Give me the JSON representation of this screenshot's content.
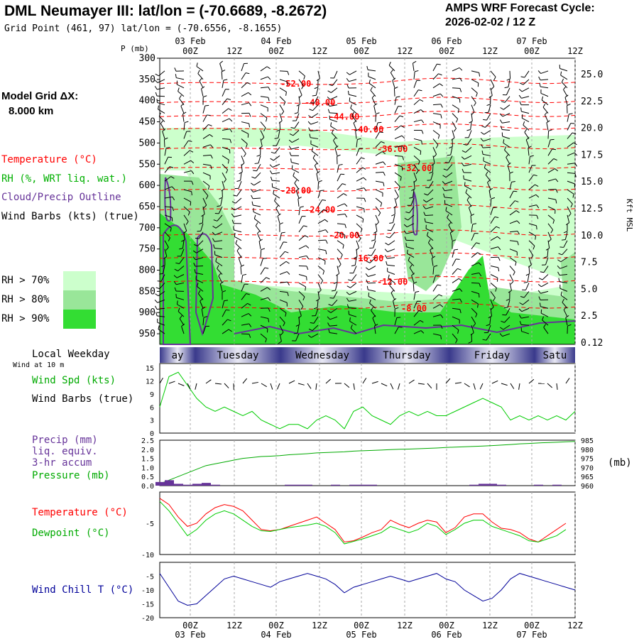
{
  "header": {
    "title": "DML Neumayer III:  lat/lon = (-70.6689, -8.2672)",
    "grid_point": "Grid Point (461, 97) lat/lon = (-70.6556, -8.1655)",
    "cycle_label": "AMPS WRF Forecast Cycle:",
    "cycle_value": "2026-02-02 / 12  Z"
  },
  "model_grid": {
    "label": "Model Grid ΔX:",
    "value": "8.000 km"
  },
  "legend": {
    "temperature": "Temperature (°C)",
    "rh": "RH (%, WRT liq. wat.)",
    "cloud": "Cloud/Precip Outline",
    "wind": "Wind Barbs (kts) (true)",
    "rh70": "RH > 70%",
    "rh80": "RH > 80%",
    "rh90": "RH > 90%"
  },
  "panel_labels": {
    "local_weekday": "Local Weekday",
    "wind_10m": "Wind at 10 m",
    "wind_spd": "Wind Spd (kts)",
    "wind_barbs": "Wind Barbs (true)",
    "precip": "Precip (mm)",
    "liq_equiv": "liq. equiv.",
    "accum": "3-hr accum",
    "pressure": "Pressure (mb)",
    "mb_unit": "(mb)",
    "temperature": "Temperature (°C)",
    "dewpoint": "Dewpoint (°C)",
    "wind_chill": "Wind Chill T (°C)",
    "p_axis": "P (mb)",
    "kft": "Kft MSL"
  },
  "colors": {
    "temperature": "#ff0000",
    "rh70": "#ccffcc",
    "rh80": "#99e699",
    "rh90": "#33dd33",
    "cloud": "#663399",
    "wind_speed": "#00cc00",
    "pressure": "#00aa00",
    "precip": "#663399",
    "dewpoint": "#00cc00",
    "wind_chill": "#000099",
    "weekday_bar": "#3a3a8c"
  },
  "chart_data": [
    {
      "type": "line",
      "panel": "time-height cross section",
      "time_ticks": [
        "00Z",
        "12Z",
        "00Z",
        "12Z",
        "00Z",
        "12Z",
        "00Z",
        "12Z",
        "00Z",
        "12Z"
      ],
      "date_labels": [
        "03 Feb",
        "04 Feb",
        "05 Feb",
        "06 Feb",
        "07 Feb"
      ],
      "pressure_ticks": [
        300,
        350,
        400,
        450,
        500,
        550,
        600,
        650,
        700,
        750,
        800,
        850,
        900,
        950
      ],
      "height_ticks": [
        "25.0",
        "22.5",
        "20.0",
        "17.5",
        "15.0",
        "12.5",
        "10.0",
        "7.5",
        "5.0",
        "2.5",
        "0.12"
      ],
      "temperature_contours": [
        {
          "label": "-52.00",
          "p": 360
        },
        {
          "label": "-48.00",
          "p": 405
        },
        {
          "label": "-44.00",
          "p": 438
        },
        {
          "label": "-40.00",
          "p": 468
        },
        {
          "label": "-36.00",
          "p": 514
        },
        {
          "label": "-32.00",
          "p": 560
        },
        {
          "label": "-28.00",
          "p": 612
        },
        {
          "label": "-24.00",
          "p": 658
        },
        {
          "label": "-20.00",
          "p": 718
        },
        {
          "label": "-16.00",
          "p": 772
        },
        {
          "label": "-12.00",
          "p": 828
        },
        {
          "label": "-8.00",
          "p": 890
        }
      ]
    },
    {
      "type": "line",
      "panel": "wind speed",
      "yticks": [
        0,
        3,
        6,
        9,
        12,
        15
      ],
      "series": [
        {
          "name": "Wind Spd (kts)",
          "values": [
            6,
            13,
            14,
            11,
            8,
            6,
            5,
            6,
            5,
            4,
            5,
            3,
            2,
            1,
            2,
            2,
            1,
            3,
            4,
            3,
            1,
            5,
            6,
            4,
            3,
            2,
            4,
            5,
            4,
            5,
            4,
            4,
            5,
            6,
            7,
            8,
            7,
            6,
            3,
            4,
            3,
            4,
            3,
            4,
            3,
            5
          ]
        }
      ]
    },
    {
      "type": "line",
      "panel": "precip and pressure",
      "precip_yticks": [
        "2.5",
        "2.0",
        "1.5",
        "1.0",
        "0.5",
        "0.0"
      ],
      "pressure_yticks": [
        985,
        980,
        975,
        970,
        965,
        960
      ],
      "series": [
        {
          "name": "Pressure (mb)",
          "values": [
            961,
            963,
            965,
            967,
            969,
            971,
            972,
            973,
            974,
            975,
            975.5,
            976,
            976.2,
            976.5,
            977,
            977.3,
            977.6,
            978,
            978.2,
            978.4,
            978.6,
            979,
            979.2,
            979.4,
            979.6,
            979.8,
            980,
            980.1,
            980.3,
            980.5,
            980.7,
            981,
            981.2,
            981.4,
            981.6,
            981.8,
            982,
            982.3,
            982.6,
            983,
            983.2,
            983.5,
            983.7,
            983.9,
            984.1,
            984.3
          ]
        },
        {
          "name": "Precip (mm)",
          "values": [
            0.2,
            0.3,
            0.1,
            0.05,
            0.1,
            0.15,
            0.05,
            0,
            0,
            0,
            0,
            0,
            0,
            0,
            0.05,
            0.05,
            0.05,
            0,
            0,
            0.05,
            0,
            0.05,
            0.05,
            0.05,
            0,
            0,
            0,
            0,
            0,
            0,
            0,
            0,
            0,
            0,
            0.05,
            0.1,
            0.1,
            0.05,
            0,
            0,
            0,
            0.05,
            0,
            0.05,
            0,
            0
          ]
        }
      ]
    },
    {
      "type": "line",
      "panel": "temperature and dewpoint",
      "yticks": [
        -5,
        -10
      ],
      "series": [
        {
          "name": "Temperature (°C)",
          "values": [
            -1,
            -2,
            -4,
            -5.5,
            -5,
            -3.5,
            -2.5,
            -2,
            -2.3,
            -3,
            -4.5,
            -6,
            -6.2,
            -6,
            -5.5,
            -5,
            -4.5,
            -4,
            -5,
            -6,
            -8,
            -7.8,
            -7.2,
            -6.5,
            -6,
            -4.5,
            -5.2,
            -5.7,
            -5,
            -4.5,
            -4.8,
            -6.5,
            -5.7,
            -4,
            -3.5,
            -3.5,
            -4.8,
            -5.8,
            -6,
            -6.5,
            -7.5,
            -8,
            -7,
            -6,
            -5
          ]
        },
        {
          "name": "Dewpoint (°C)",
          "values": [
            -1.5,
            -3,
            -5,
            -7,
            -6,
            -4.5,
            -3.5,
            -3,
            -3.5,
            -4.5,
            -5.5,
            -6.2,
            -6.3,
            -6,
            -5.7,
            -5.5,
            -5.3,
            -5,
            -5.5,
            -6.5,
            -8.3,
            -7.9,
            -7.5,
            -7,
            -6.5,
            -5.5,
            -6,
            -6.5,
            -6,
            -5,
            -5.5,
            -6.8,
            -6,
            -5,
            -4.5,
            -4.5,
            -5.5,
            -6,
            -6.5,
            -7,
            -7.8,
            -8,
            -7.5,
            -7,
            -6
          ]
        }
      ]
    },
    {
      "type": "line",
      "panel": "wind chill",
      "yticks": [
        -5,
        -10,
        -15,
        -20
      ],
      "series": [
        {
          "name": "Wind Chill T (°C)",
          "values": [
            -4,
            -9,
            -14,
            -15.5,
            -15,
            -12,
            -9,
            -6,
            -5,
            -6,
            -7,
            -8,
            -9,
            -7,
            -6,
            -5,
            -4,
            -5,
            -6,
            -8,
            -11,
            -9,
            -8,
            -7,
            -6,
            -5,
            -6,
            -7,
            -6,
            -5,
            -4,
            -6,
            -7,
            -10,
            -12,
            -14,
            -13,
            -10,
            -6,
            -4,
            -5,
            -6,
            -7,
            -8,
            -9,
            -10
          ]
        }
      ]
    },
    {
      "type": "table",
      "panel": "local weekday",
      "days": [
        "Monday",
        "Tuesday",
        "Wednesday",
        "Thursday",
        "Friday",
        "Saturday"
      ],
      "visible_labels": [
        "ay",
        "Tuesday",
        "Wednesday",
        "Thursday",
        "Friday",
        "Satu"
      ]
    }
  ]
}
